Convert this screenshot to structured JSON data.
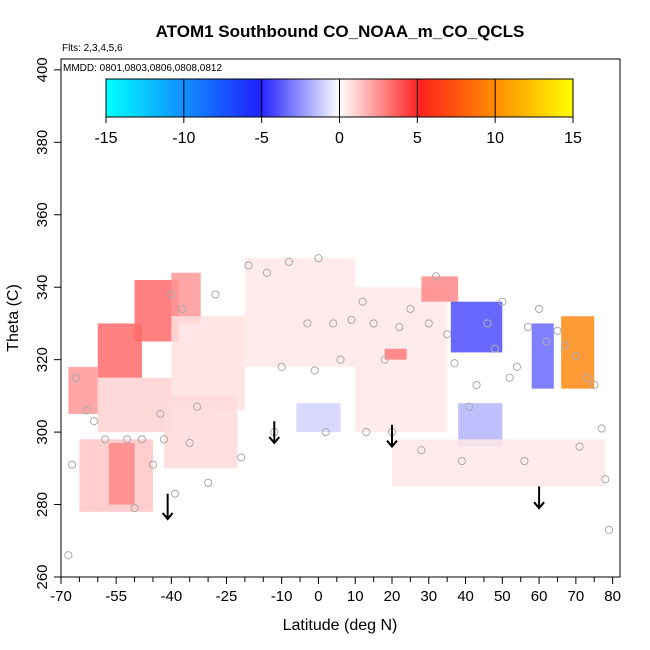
{
  "chart_data": {
    "type": "heatmap",
    "title": "ATOM1 Southbound CO_NOAA_m_CO_QCLS",
    "flights_note": "Flts: 2,3,4,5,6",
    "dates_note": "MMDD: 0801,0803,0806,0808,0812",
    "xlabel": "Latitude (deg N)",
    "ylabel": "Theta (C)",
    "xlim": [
      -70,
      82
    ],
    "ylim": [
      260,
      403
    ],
    "x_major_ticks": [
      -70,
      -55,
      -40,
      -25,
      -10,
      0,
      10,
      20,
      30,
      40,
      50,
      60,
      70,
      80
    ],
    "x_minor_ticks": [
      -65,
      -60,
      -50,
      -45,
      -35,
      -30,
      -20,
      -15,
      -5,
      5,
      15,
      25,
      35,
      45,
      55,
      65,
      75
    ],
    "y_ticks": [
      260,
      280,
      300,
      320,
      340,
      360,
      380,
      400
    ],
    "colorbar": {
      "min": -15,
      "max": 15,
      "ticks": [
        -15,
        -10,
        -5,
        0,
        5,
        10,
        15
      ],
      "tick_labels": [
        "-15",
        "-10",
        "-5",
        "0",
        "5",
        "10",
        "15"
      ],
      "colors": [
        "#00ffff",
        "#2020ff",
        "#ffffff",
        "#ff2020",
        "#ffff00"
      ]
    },
    "field_cells": [
      {
        "lat": -68,
        "lon_to": -60,
        "th": 305,
        "th_to": 318,
        "v": 3.5
      },
      {
        "lat": -60,
        "lon_to": -48,
        "th": 315,
        "th_to": 330,
        "v": 5.0
      },
      {
        "lat": -50,
        "lon_to": -38,
        "th": 325,
        "th_to": 342,
        "v": 5.0
      },
      {
        "lat": -40,
        "lon_to": -32,
        "th": 330,
        "th_to": 344,
        "v": 3.5
      },
      {
        "lat": -60,
        "lon_to": -40,
        "th": 300,
        "th_to": 315,
        "v": 1.5
      },
      {
        "lat": -40,
        "lon_to": -20,
        "th": 306,
        "th_to": 332,
        "v": 1.0
      },
      {
        "lat": -20,
        "lon_to": 10,
        "th": 318,
        "th_to": 348,
        "v": 0.8
      },
      {
        "lat": -42,
        "lon_to": -22,
        "th": 290,
        "th_to": 310,
        "v": 1.2
      },
      {
        "lat": -65,
        "lon_to": -45,
        "th": 278,
        "th_to": 298,
        "v": 2.0
      },
      {
        "lat": -57,
        "lon_to": -50,
        "th": 280,
        "th_to": 297,
        "v": 4.0
      },
      {
        "lat": 10,
        "lon_to": 35,
        "th": 300,
        "th_to": 340,
        "v": 0.8
      },
      {
        "lat": 18,
        "lon_to": 24,
        "th": 320,
        "th_to": 323,
        "v": 4.5
      },
      {
        "lat": 28,
        "lon_to": 38,
        "th": 336,
        "th_to": 343,
        "v": 4.0
      },
      {
        "lat": 36,
        "lon_to": 50,
        "th": 322,
        "th_to": 336,
        "v": -6.0
      },
      {
        "lat": 58,
        "lon_to": 64,
        "th": 312,
        "th_to": 330,
        "v": -5.0
      },
      {
        "lat": 66,
        "lon_to": 75,
        "th": 312,
        "th_to": 332,
        "v": 11.0
      },
      {
        "lat": 38,
        "lon_to": 50,
        "th": 296,
        "th_to": 308,
        "v": -2.5
      },
      {
        "lat": -6,
        "lon_to": 6,
        "th": 300,
        "th_to": 308,
        "v": -1.5
      },
      {
        "lat": 20,
        "lon_to": 78,
        "th": 285,
        "th_to": 298,
        "v": 0.8
      }
    ],
    "sample_points": [
      {
        "lat": -68,
        "theta": 266
      },
      {
        "lat": -67,
        "theta": 291
      },
      {
        "lat": -66,
        "theta": 315
      },
      {
        "lat": -63,
        "theta": 306
      },
      {
        "lat": -61,
        "theta": 303
      },
      {
        "lat": -58,
        "theta": 298
      },
      {
        "lat": -52,
        "theta": 298
      },
      {
        "lat": -50,
        "theta": 279
      },
      {
        "lat": -48,
        "theta": 298
      },
      {
        "lat": -45,
        "theta": 291
      },
      {
        "lat": -43,
        "theta": 305
      },
      {
        "lat": -42,
        "theta": 298
      },
      {
        "lat": -39,
        "theta": 283
      },
      {
        "lat": -35,
        "theta": 297
      },
      {
        "lat": -30,
        "theta": 286
      },
      {
        "lat": -33,
        "theta": 307
      },
      {
        "lat": -40,
        "theta": 338
      },
      {
        "lat": -37,
        "theta": 334
      },
      {
        "lat": -28,
        "theta": 338
      },
      {
        "lat": -21,
        "theta": 293
      },
      {
        "lat": -19,
        "theta": 346
      },
      {
        "lat": -14,
        "theta": 344
      },
      {
        "lat": -12,
        "theta": 300
      },
      {
        "lat": -10,
        "theta": 318
      },
      {
        "lat": -8,
        "theta": 347
      },
      {
        "lat": -3,
        "theta": 330
      },
      {
        "lat": -1,
        "theta": 317
      },
      {
        "lat": 0,
        "theta": 348
      },
      {
        "lat": 2,
        "theta": 300
      },
      {
        "lat": 4,
        "theta": 330
      },
      {
        "lat": 6,
        "theta": 320
      },
      {
        "lat": 9,
        "theta": 331
      },
      {
        "lat": 12,
        "theta": 336
      },
      {
        "lat": 13,
        "theta": 300
      },
      {
        "lat": 15,
        "theta": 330
      },
      {
        "lat": 18,
        "theta": 320
      },
      {
        "lat": 20,
        "theta": 300
      },
      {
        "lat": 22,
        "theta": 329
      },
      {
        "lat": 25,
        "theta": 334
      },
      {
        "lat": 28,
        "theta": 295
      },
      {
        "lat": 30,
        "theta": 330
      },
      {
        "lat": 32,
        "theta": 343
      },
      {
        "lat": 35,
        "theta": 327
      },
      {
        "lat": 37,
        "theta": 319
      },
      {
        "lat": 39,
        "theta": 292
      },
      {
        "lat": 41,
        "theta": 307
      },
      {
        "lat": 43,
        "theta": 313
      },
      {
        "lat": 46,
        "theta": 330
      },
      {
        "lat": 48,
        "theta": 323
      },
      {
        "lat": 50,
        "theta": 336
      },
      {
        "lat": 52,
        "theta": 315
      },
      {
        "lat": 54,
        "theta": 318
      },
      {
        "lat": 56,
        "theta": 292
      },
      {
        "lat": 57,
        "theta": 329
      },
      {
        "lat": 60,
        "theta": 334
      },
      {
        "lat": 62,
        "theta": 325
      },
      {
        "lat": 65,
        "theta": 328
      },
      {
        "lat": 67,
        "theta": 324
      },
      {
        "lat": 70,
        "theta": 321
      },
      {
        "lat": 71,
        "theta": 296
      },
      {
        "lat": 73,
        "theta": 315
      },
      {
        "lat": 75,
        "theta": 313
      },
      {
        "lat": 77,
        "theta": 301
      },
      {
        "lat": 78,
        "theta": 287
      },
      {
        "lat": 79,
        "theta": 273
      }
    ],
    "annotation_arrows": [
      {
        "lat": -41,
        "theta_from": 283,
        "theta_to": 276
      },
      {
        "lat": -12,
        "theta_from": 303,
        "theta_to": 297
      },
      {
        "lat": 20,
        "theta_from": 302,
        "theta_to": 296
      },
      {
        "lat": 60,
        "theta_from": 285,
        "theta_to": 279
      }
    ]
  }
}
